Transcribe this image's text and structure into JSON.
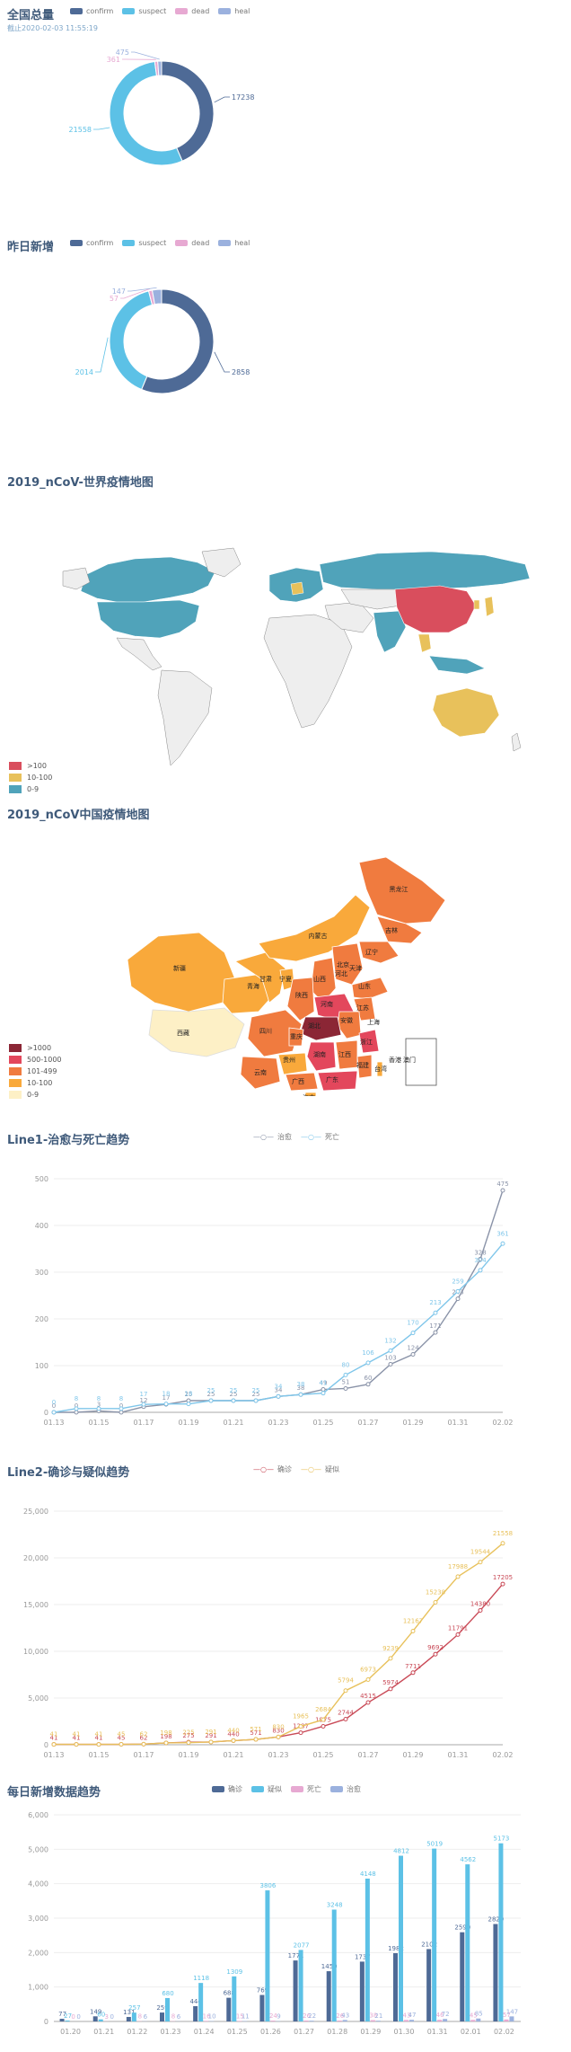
{
  "total": {
    "title": "全国总量",
    "subtitle": "截止2020-02-03 11:55:19",
    "legend": [
      "confirm",
      "suspect",
      "dead",
      "heal"
    ],
    "colors": [
      "#4e6a96",
      "#5cc1e6",
      "#e7a9d2",
      "#9bb1de"
    ],
    "chart_data": {
      "type": "pie",
      "labels": [
        "confirm",
        "suspect",
        "dead",
        "heal"
      ],
      "values": [
        17238,
        21558,
        361,
        475
      ]
    }
  },
  "yesterday": {
    "title": "昨日新增",
    "legend": [
      "confirm",
      "suspect",
      "dead",
      "heal"
    ],
    "colors": [
      "#4e6a96",
      "#5cc1e6",
      "#e7a9d2",
      "#9bb1de"
    ],
    "chart_data": {
      "type": "pie",
      "labels": [
        "confirm",
        "suspect",
        "dead",
        "heal"
      ],
      "values": [
        2858,
        2014,
        57,
        147
      ]
    }
  },
  "world_map": {
    "title": "2019_nCoV-世界疫情地图",
    "legend": [
      {
        "label": ">100",
        "color": "#d94e5d"
      },
      {
        "label": "10-100",
        "color": "#e8c15b"
      },
      {
        "label": "0-9",
        "color": "#50a3ba"
      }
    ]
  },
  "china_map": {
    "title": "2019_nCoV中国疫情地图",
    "legend": [
      {
        "label": ">1000",
        "color": "#8b2635"
      },
      {
        "label": "500-1000",
        "color": "#e3475c"
      },
      {
        "label": "101-499",
        "color": "#f07b3f"
      },
      {
        "label": "10-100",
        "color": "#f9a93b"
      },
      {
        "label": "0-9",
        "color": "#fdf0c6"
      }
    ],
    "provinces": [
      "黑龙江",
      "吉林",
      "辽宁",
      "内蒙古",
      "北京",
      "天津",
      "河北",
      "山西",
      "山东",
      "宁夏",
      "甘肃",
      "青海",
      "陕西",
      "河南",
      "江苏",
      "安徽",
      "上海",
      "四川",
      "重庆",
      "湖北",
      "浙江",
      "西藏",
      "贵州",
      "湖南",
      "江西",
      "福建",
      "云南",
      "广西",
      "广东",
      "台湾",
      "香港",
      "澳门",
      "海南",
      "新疆"
    ]
  },
  "line1": {
    "title": "Line1-治愈与死亡趋势",
    "legend": [
      "治愈",
      "死亡"
    ],
    "colors": [
      "#8a93a8",
      "#7fc6ea"
    ],
    "chart_data": {
      "type": "line",
      "x": [
        "01.13",
        "01.14",
        "01.15",
        "01.16",
        "01.17",
        "01.18",
        "01.19",
        "01.20",
        "01.21",
        "01.22",
        "01.23",
        "01.24",
        "01.25",
        "01.26",
        "01.27",
        "01.28",
        "01.29",
        "01.30",
        "01.31",
        "02.01",
        "02.02"
      ],
      "x_ticks": [
        "01.13",
        "01.15",
        "01.17",
        "01.19",
        "01.21",
        "01.23",
        "01.25",
        "01.27",
        "01.29",
        "01.31",
        "02.02"
      ],
      "series": [
        {
          "name": "治愈",
          "values": [
            0,
            0,
            3,
            0,
            12,
            17,
            25,
            25,
            25,
            25,
            34,
            38,
            49,
            51,
            60,
            103,
            124,
            171,
            243,
            328,
            475
          ]
        },
        {
          "name": "死亡",
          "values": [
            0,
            8,
            8,
            8,
            17,
            18,
            18,
            25,
            25,
            25,
            34,
            38,
            41,
            80,
            106,
            132,
            170,
            213,
            259,
            304,
            361
          ]
        }
      ],
      "ylim": [
        0,
        500
      ],
      "yticks": [
        0,
        100,
        200,
        300,
        400,
        500
      ]
    }
  },
  "line2": {
    "title": "Line2-确诊与疑似趋势",
    "legend": [
      "确诊",
      "疑似"
    ],
    "colors": [
      "#c94a57",
      "#e8c15b"
    ],
    "chart_data": {
      "type": "line",
      "x": [
        "01.13",
        "01.14",
        "01.15",
        "01.16",
        "01.17",
        "01.18",
        "01.19",
        "01.20",
        "01.21",
        "01.22",
        "01.23",
        "01.24",
        "01.25",
        "01.26",
        "01.27",
        "01.28",
        "01.29",
        "01.30",
        "01.31",
        "02.01",
        "02.02"
      ],
      "x_ticks": [
        "01.13",
        "01.15",
        "01.17",
        "01.19",
        "01.21",
        "01.23",
        "01.25",
        "01.27",
        "01.29",
        "01.31",
        "02.02"
      ],
      "series": [
        {
          "name": "确诊",
          "values": [
            41,
            41,
            41,
            45,
            62,
            198,
            275,
            291,
            440,
            571,
            830,
            1287,
            1975,
            2744,
            4515,
            5974,
            7711,
            9692,
            11791,
            14380,
            17205
          ]
        },
        {
          "name": "疑似",
          "values": [
            41,
            41,
            41,
            45,
            62,
            198,
            225,
            291,
            440,
            571,
            830,
            1965,
            2684,
            5794,
            6973,
            9239,
            12167,
            15238,
            17988,
            19544,
            21558
          ]
        }
      ],
      "ylim": [
        0,
        25000
      ],
      "yticks": [
        "0",
        "5,000",
        "10,000",
        "15,000",
        "20,000",
        "25,000"
      ]
    }
  },
  "daily": {
    "title": "每日新增数据趋势",
    "legend": [
      "确诊",
      "疑似",
      "死亡",
      "治愈"
    ],
    "colors": [
      "#4e6a96",
      "#5cc1e6",
      "#e7a9d2",
      "#9bb1de"
    ],
    "chart_data": {
      "type": "bar",
      "categories": [
        "01.20",
        "01.21",
        "01.22",
        "01.23",
        "01.24",
        "01.25",
        "01.26",
        "01.27",
        "01.28",
        "01.29",
        "01.30",
        "01.31",
        "02.01",
        "02.02"
      ],
      "series": [
        {
          "name": "确诊",
          "values": [
            77,
            149,
            131,
            259,
            444,
            688,
            769,
            1771,
            1459,
            1737,
            1982,
            2102,
            2590,
            2829
          ]
        },
        {
          "name": "疑似",
          "values": [
            27,
            60,
            257,
            680,
            1118,
            1309,
            3806,
            2077,
            3248,
            4148,
            4812,
            5019,
            4562,
            5173
          ]
        },
        {
          "name": "死亡",
          "values": [
            0,
            3,
            8,
            8,
            16,
            15,
            24,
            26,
            26,
            38,
            43,
            46,
            45,
            57
          ]
        },
        {
          "name": "治愈",
          "values": [
            0,
            0,
            6,
            6,
            10,
            11,
            9,
            22,
            43,
            21,
            47,
            72,
            85,
            147
          ]
        }
      ],
      "ylim": [
        0,
        6000
      ],
      "yticks": [
        "0",
        "1,000",
        "2,000",
        "3,000",
        "4,000",
        "5,000",
        "6,000"
      ]
    }
  }
}
